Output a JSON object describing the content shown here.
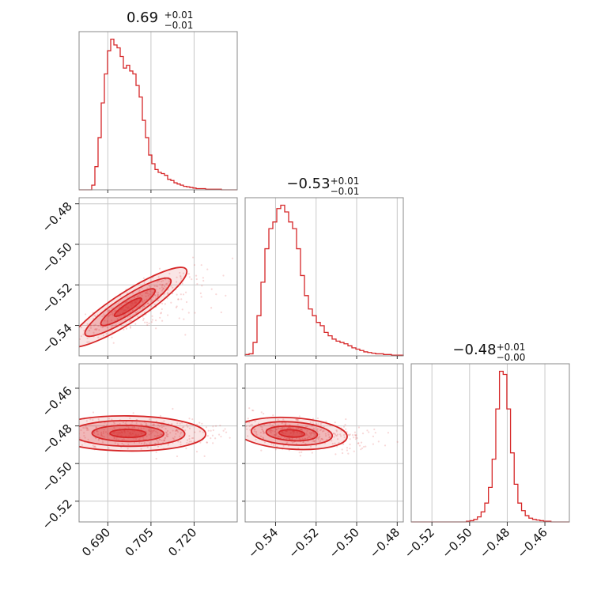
{
  "chart_data": {
    "type": "corner",
    "color": "#d62728",
    "grid": true,
    "parameters": [
      {
        "range": [
          0.68,
          0.735
        ],
        "ticks": [
          0.69,
          0.705,
          0.72
        ],
        "tick_labels": [
          "0.690",
          "0.705",
          "0.720"
        ],
        "title": {
          "value": "0.69",
          "upper": "+0.01",
          "lower": "−0.01"
        },
        "histogram": {
          "bins": [
            0.68,
            0.735
          ],
          "counts": [
            0,
            0,
            0,
            0,
            8,
            40,
            90,
            150,
            200,
            240,
            260,
            250,
            245,
            230,
            210,
            215,
            205,
            200,
            180,
            160,
            120,
            90,
            60,
            45,
            35,
            30,
            28,
            25,
            18,
            16,
            12,
            10,
            8,
            6,
            5,
            4,
            3,
            2,
            2,
            2,
            1,
            1,
            1,
            1,
            1,
            0,
            0,
            0,
            0,
            0
          ]
        }
      },
      {
        "range": [
          -0.555,
          -0.477
        ],
        "ticks": [
          -0.54,
          -0.52,
          -0.5,
          -0.48
        ],
        "tick_labels": [
          "−0.54",
          "−0.52",
          "−0.50",
          "−0.48"
        ],
        "title": {
          "value": "−0.53",
          "upper": "+0.01",
          "lower": "−0.01"
        },
        "histogram": {
          "bins": [
            -0.555,
            -0.477
          ],
          "counts": [
            2,
            3,
            20,
            60,
            110,
            160,
            190,
            200,
            220,
            225,
            215,
            200,
            190,
            160,
            120,
            90,
            70,
            60,
            50,
            45,
            35,
            30,
            25,
            22,
            20,
            18,
            15,
            12,
            10,
            8,
            6,
            5,
            4,
            3,
            3,
            2,
            2,
            1,
            1,
            1
          ]
        }
      },
      {
        "range": [
          -0.531,
          -0.447
        ],
        "ticks": [
          -0.52,
          -0.5,
          -0.48,
          -0.46
        ],
        "tick_labels": [
          "−0.52",
          "−0.50",
          "−0.48",
          "−0.46"
        ],
        "title": {
          "value": "−0.48",
          "upper": "+0.01",
          "lower": "−0.00"
        },
        "histogram": {
          "bins": [
            -0.531,
            -0.447
          ],
          "counts": [
            0,
            0,
            0,
            0,
            0,
            0,
            0,
            0,
            0,
            0,
            0,
            0,
            0,
            0,
            0,
            1,
            2,
            4,
            8,
            16,
            30,
            55,
            100,
            180,
            240,
            235,
            180,
            110,
            60,
            30,
            18,
            10,
            6,
            4,
            3,
            2,
            1,
            1,
            0,
            0,
            0,
            0,
            0
          ]
        }
      }
    ],
    "pairs": [
      {
        "x": 0,
        "y": 1,
        "center": [
          0.697,
          -0.531
        ],
        "spread": [
          0.006,
          0.006
        ],
        "corr": 0.92
      },
      {
        "x": 0,
        "y": 2,
        "center": [
          0.697,
          -0.484
        ],
        "spread": [
          0.008,
          0.003
        ],
        "corr": -0.1
      },
      {
        "x": 1,
        "y": 2,
        "center": [
          -0.532,
          -0.484
        ],
        "spread": [
          0.008,
          0.003
        ],
        "corr": -0.45
      }
    ]
  }
}
